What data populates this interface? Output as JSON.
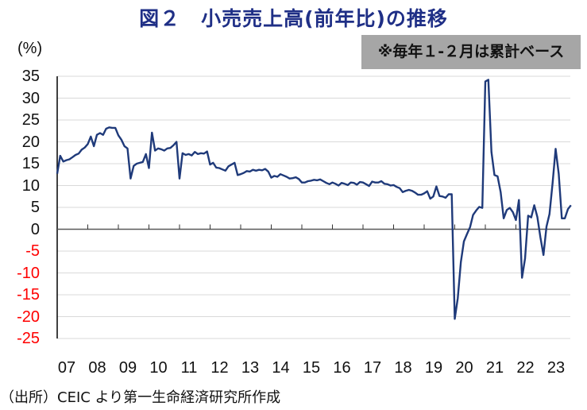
{
  "title": "図２　小売売上高(前年比)の推移",
  "unit_label": "(%)",
  "note": "※毎年１-２月は累計ベース",
  "source": "（出所）CEIC より第一生命経済研究所作成",
  "colors": {
    "line": "#1f3a7a",
    "title": "#1f2f86",
    "negative_tick": "#ff0000",
    "grid": "#d9d9d9",
    "note_bg": "#a6a6a6"
  },
  "y_ticks": [
    "35",
    "30",
    "25",
    "20",
    "15",
    "10",
    "5",
    "0",
    "-5",
    "-10",
    "-15",
    "-20",
    "-25"
  ],
  "x_ticks": [
    "07",
    "08",
    "09",
    "10",
    "11",
    "12",
    "13",
    "14",
    "15",
    "16",
    "17",
    "18",
    "19",
    "20",
    "21",
    "22",
    "23"
  ],
  "chart_data": {
    "type": "line",
    "title": "図２　小売売上高(前年比)の推移",
    "xlabel": "",
    "ylabel": "(%)",
    "ylim": [
      -25,
      35
    ],
    "y_step": 5,
    "grid": true,
    "legend": "none",
    "annotation": "※毎年１-２月は累計ベース",
    "x_tick_labels": [
      "07",
      "08",
      "09",
      "10",
      "11",
      "12",
      "13",
      "14",
      "15",
      "16",
      "17",
      "18",
      "19",
      "20",
      "21",
      "22",
      "23"
    ],
    "series": [
      {
        "name": "小売売上高(前年比)",
        "x": [
          2007.0,
          2007.1,
          2007.2,
          2007.3,
          2007.4,
          2007.5,
          2007.6,
          2007.7,
          2007.8,
          2007.9,
          2008.0,
          2008.1,
          2008.2,
          2008.3,
          2008.4,
          2008.5,
          2008.6,
          2008.7,
          2008.8,
          2008.9,
          2009.0,
          2009.1,
          2009.2,
          2009.3,
          2009.4,
          2009.5,
          2009.6,
          2009.7,
          2009.8,
          2009.9,
          2010.0,
          2010.1,
          2010.2,
          2010.3,
          2010.4,
          2010.5,
          2010.6,
          2010.7,
          2010.8,
          2010.9,
          2011.0,
          2011.1,
          2011.2,
          2011.3,
          2011.4,
          2011.5,
          2011.6,
          2011.7,
          2011.8,
          2011.9,
          2012.0,
          2012.1,
          2012.2,
          2012.3,
          2012.4,
          2012.5,
          2012.6,
          2012.7,
          2012.8,
          2012.9,
          2013.0,
          2013.1,
          2013.2,
          2013.3,
          2013.4,
          2013.5,
          2013.6,
          2013.7,
          2013.8,
          2013.9,
          2014.0,
          2014.1,
          2014.2,
          2014.3,
          2014.4,
          2014.5,
          2014.6,
          2014.7,
          2014.8,
          2014.9,
          2015.0,
          2015.1,
          2015.2,
          2015.3,
          2015.4,
          2015.5,
          2015.6,
          2015.7,
          2015.8,
          2015.9,
          2016.0,
          2016.1,
          2016.2,
          2016.3,
          2016.4,
          2016.5,
          2016.6,
          2016.7,
          2016.8,
          2016.9,
          2017.0,
          2017.1,
          2017.2,
          2017.3,
          2017.4,
          2017.5,
          2017.6,
          2017.7,
          2017.8,
          2017.9,
          2018.0,
          2018.1,
          2018.2,
          2018.3,
          2018.4,
          2018.5,
          2018.6,
          2018.7,
          2018.8,
          2018.9,
          2019.0,
          2019.1,
          2019.2,
          2019.3,
          2019.4,
          2019.5,
          2019.6,
          2019.7,
          2019.8,
          2019.9,
          2020.0,
          2020.1,
          2020.2,
          2020.3,
          2020.4,
          2020.5,
          2020.6,
          2020.7,
          2020.8,
          2020.9,
          2021.0,
          2021.1,
          2021.2,
          2021.3,
          2021.4,
          2021.5,
          2021.6,
          2021.7,
          2021.8,
          2021.9,
          2022.0,
          2022.1,
          2022.2,
          2022.3,
          2022.4,
          2022.5,
          2022.6,
          2022.7,
          2022.8,
          2022.9,
          2023.0,
          2023.1,
          2023.2,
          2023.3,
          2023.4,
          2023.5,
          2023.6,
          2023.7,
          2023.8
        ],
        "values": [
          12.7,
          16.8,
          15.5,
          15.8,
          16.0,
          16.5,
          17.0,
          17.3,
          18.2,
          18.7,
          19.5,
          21.2,
          19.0,
          21.6,
          22.0,
          21.6,
          23.0,
          23.3,
          23.2,
          23.2,
          21.5,
          20.5,
          19.0,
          18.5,
          11.6,
          14.5,
          15.0,
          15.2,
          15.4,
          17.2,
          14.0,
          22.1,
          18.0,
          18.5,
          18.3,
          18.0,
          18.5,
          18.6,
          19.2,
          20.0,
          11.6,
          17.4,
          17.0,
          17.2,
          16.9,
          17.7,
          17.2,
          17.4,
          17.3,
          17.8,
          14.8,
          15.2,
          14.1,
          14.0,
          13.7,
          13.4,
          14.4,
          14.8,
          15.2,
          12.4,
          12.6,
          12.9,
          13.3,
          13.2,
          13.6,
          13.4,
          13.6,
          13.5,
          13.8,
          13.2,
          11.8,
          12.2,
          12.0,
          12.6,
          12.3,
          12.0,
          11.6,
          11.7,
          11.9,
          11.5,
          10.7,
          10.7,
          11.0,
          11.1,
          11.3,
          11.2,
          11.4,
          11.0,
          10.6,
          10.3,
          10.7,
          10.4,
          10.0,
          10.6,
          10.4,
          10.1,
          10.7,
          10.6,
          10.2,
          10.8,
          10.7,
          10.3,
          9.9,
          10.9,
          10.7,
          10.7,
          11.0,
          10.4,
          10.3,
          10.0,
          10.1,
          9.7,
          9.4,
          8.5,
          8.8,
          9.0,
          8.8,
          8.4,
          7.9,
          7.9,
          8.2,
          8.7,
          7.0,
          7.5,
          9.8,
          7.6,
          7.5,
          7.2,
          8.0,
          8.0,
          -20.5,
          -15.8,
          -7.5,
          -2.8,
          -1.1,
          0.5,
          3.3,
          4.3,
          5.1,
          4.9,
          33.8,
          34.2,
          17.7,
          12.4,
          12.1,
          8.5,
          2.5,
          4.4,
          4.9,
          3.9,
          2.1,
          6.7,
          -11.1,
          -6.7,
          3.1,
          2.7,
          5.5,
          2.8,
          -1.8,
          -5.9,
          0.6,
          3.5,
          10.6,
          18.4,
          12.7,
          2.5,
          2.5,
          4.6,
          5.5
        ]
      }
    ]
  }
}
